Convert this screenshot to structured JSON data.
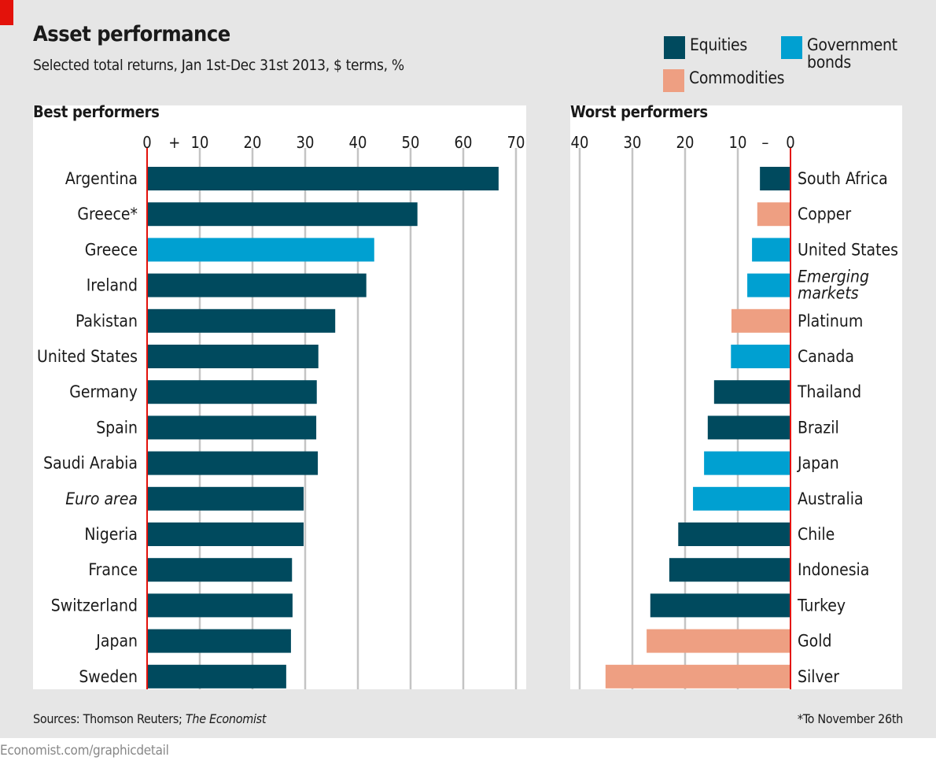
{
  "title": "Asset performance",
  "subtitle": "Selected total returns, Jan 1st-Dec 31st 2013, $ terms, %",
  "legend": [
    {
      "label": "Equities",
      "color": "#004a5e"
    },
    {
      "label": "Government bonds",
      "color": "#00a0d1"
    },
    {
      "label": "Commodities",
      "color": "#ee9f82"
    }
  ],
  "source_prefix": "Sources: Thomson Reuters; ",
  "source_italic": "The Economist",
  "footnote": "*To November 26th",
  "url": "Economist.com/graphicdetail",
  "colors": {
    "Equities": "#004a5e",
    "Government bonds": "#00a0d1",
    "Commodities": "#ee9f82",
    "zero_line": "#e3120b",
    "grid": "#c4c4c4"
  },
  "chart_data": [
    {
      "type": "bar",
      "orientation": "horizontal",
      "title": "Best performers",
      "xlim": [
        0,
        70
      ],
      "ticks": [
        0,
        10,
        20,
        30,
        40,
        50,
        60,
        70
      ],
      "tick_labels": [
        "0",
        "10",
        "20",
        "30",
        "40",
        "50",
        "60",
        "70"
      ],
      "sign_marker": "+",
      "grid": true,
      "categories": [
        "Argentina",
        "Greece*",
        "Greece",
        "Ireland",
        "Pakistan",
        "United States",
        "Germany",
        "Spain",
        "Saudi Arabia",
        "Euro area",
        "Nigeria",
        "France",
        "Switzerland",
        "Japan",
        "Sweden"
      ],
      "italic": [
        false,
        false,
        false,
        false,
        false,
        false,
        false,
        false,
        false,
        true,
        false,
        false,
        false,
        false,
        false
      ],
      "asset_class": [
        "Equities",
        "Equities",
        "Government bonds",
        "Equities",
        "Equities",
        "Equities",
        "Equities",
        "Equities",
        "Equities",
        "Equities",
        "Equities",
        "Equities",
        "Equities",
        "Equities",
        "Equities"
      ],
      "values": [
        66.7,
        51.3,
        43.1,
        41.6,
        35.7,
        32.5,
        32.2,
        32.1,
        32.4,
        29.7,
        29.7,
        27.5,
        27.6,
        27.3,
        26.4
      ]
    },
    {
      "type": "bar",
      "orientation": "horizontal",
      "title": "Worst performers",
      "xlim": [
        -40,
        0
      ],
      "ticks": [
        -40,
        -30,
        -20,
        -10,
        0
      ],
      "tick_labels": [
        "40",
        "30",
        "20",
        "10",
        "0"
      ],
      "sign_marker": "–",
      "grid": true,
      "categories": [
        "South Africa",
        "Copper",
        "United States",
        "Emerging markets",
        "Platinum",
        "Canada",
        "Thailand",
        "Brazil",
        "Japan",
        "Australia",
        "Chile",
        "Indonesia",
        "Turkey",
        "Gold",
        "Silver"
      ],
      "label_lines": [
        [
          "South Africa"
        ],
        [
          "Copper"
        ],
        [
          "United States"
        ],
        [
          "Emerging",
          "markets"
        ],
        [
          "Platinum"
        ],
        [
          "Canada"
        ],
        [
          "Thailand"
        ],
        [
          "Brazil"
        ],
        [
          "Japan"
        ],
        [
          "Australia"
        ],
        [
          "Chile"
        ],
        [
          "Indonesia"
        ],
        [
          "Turkey"
        ],
        [
          "Gold"
        ],
        [
          "Silver"
        ]
      ],
      "italic": [
        false,
        false,
        false,
        true,
        false,
        false,
        false,
        false,
        false,
        false,
        false,
        false,
        false,
        false,
        false
      ],
      "asset_class": [
        "Equities",
        "Commodities",
        "Government bonds",
        "Government bonds",
        "Commodities",
        "Government bonds",
        "Equities",
        "Equities",
        "Government bonds",
        "Government bonds",
        "Equities",
        "Equities",
        "Equities",
        "Commodities",
        "Commodities"
      ],
      "values": [
        -5.8,
        -6.3,
        -7.3,
        -8.2,
        -11.2,
        -11.3,
        -14.5,
        -15.7,
        -16.4,
        -18.5,
        -21.3,
        -23.0,
        -26.6,
        -27.3,
        -35.1
      ]
    }
  ]
}
